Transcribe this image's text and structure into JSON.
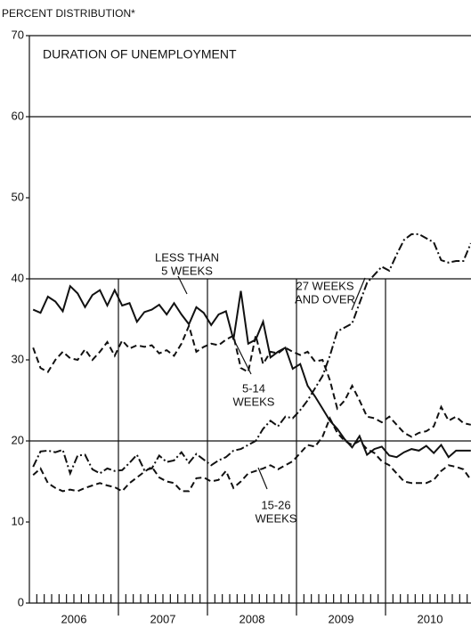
{
  "chart_data": {
    "type": "line",
    "y_label": "PERCENT DISTRIBUTION*",
    "title": "DURATION OF UNEMPLOYMENT",
    "categories": [
      null,
      null,
      null,
      null,
      null,
      null,
      "2006",
      null,
      null,
      null,
      null,
      null,
      null,
      null,
      null,
      null,
      null,
      null,
      "2007",
      null,
      null,
      null,
      null,
      null,
      null,
      null,
      null,
      null,
      null,
      null,
      "2008",
      null,
      null,
      null,
      null,
      null,
      null,
      null,
      null,
      null,
      null,
      null,
      "2009",
      null,
      null,
      null,
      null,
      null,
      null,
      null,
      null,
      null,
      null,
      null,
      "2010",
      null,
      null,
      null,
      null,
      null
    ],
    "ylim": [
      0,
      70
    ],
    "yticks": [
      0,
      10,
      20,
      30,
      40,
      50,
      60,
      70
    ],
    "grid_values": [
      20,
      40,
      60
    ],
    "series": [
      {
        "name": "LESS THAN 5 WEEKS",
        "color": "#111111",
        "style": "solid",
        "values": [
          36.2,
          35.8,
          37.8,
          37.2,
          36.0,
          39.1,
          38.2,
          36.5,
          38.0,
          38.6,
          36.7,
          38.6,
          36.7,
          37.0,
          34.7,
          35.9,
          36.2,
          36.8,
          35.6,
          37.0,
          35.6,
          34.4,
          36.5,
          35.8,
          34.3,
          35.6,
          36.0,
          32.5,
          38.5,
          32.0,
          32.5,
          34.7,
          30.3,
          31.0,
          31.5,
          28.9,
          29.5,
          26.8,
          25.5,
          24.0,
          22.5,
          21.5,
          20.2,
          19.2,
          20.6,
          18.3,
          19.0,
          19.3,
          18.2,
          18.0,
          18.6,
          19.0,
          18.8,
          19.4,
          18.5,
          19.5,
          18.0,
          18.8,
          18.8,
          18.8
        ]
      },
      {
        "name": "5-14 WEEKS",
        "color": "#111111",
        "style": "dashed",
        "values": [
          31.5,
          29.0,
          28.5,
          30.0,
          31.0,
          30.2,
          30.0,
          31.3,
          30.0,
          31.0,
          32.2,
          30.5,
          32.4,
          31.4,
          31.8,
          31.6,
          31.8,
          30.8,
          31.2,
          30.5,
          32.0,
          34.2,
          31.0,
          31.6,
          32.0,
          31.8,
          32.5,
          33.0,
          29.0,
          28.5,
          33.0,
          29.5,
          31.0,
          30.8,
          31.5,
          31.0,
          30.6,
          31.0,
          29.8,
          30.0,
          27.5,
          24.0,
          25.0,
          26.8,
          25.0,
          23.0,
          22.8,
          22.3,
          23.0,
          22.0,
          21.0,
          20.5,
          21.0,
          21.2,
          21.8,
          24.2,
          22.5,
          23.0,
          22.2,
          22.0
        ]
      },
      {
        "name": "15-26 WEEKS",
        "color": "#111111",
        "style": "dashed",
        "values": [
          15.8,
          16.6,
          14.8,
          14.2,
          13.8,
          14.0,
          13.8,
          14.2,
          14.5,
          14.8,
          14.5,
          14.3,
          13.8,
          14.8,
          15.5,
          16.2,
          16.8,
          15.5,
          15.0,
          14.8,
          13.8,
          13.8,
          15.4,
          15.5,
          15.0,
          15.2,
          16.3,
          14.2,
          15.0,
          16.0,
          16.3,
          16.6,
          17.0,
          16.5,
          17.0,
          17.5,
          18.5,
          19.5,
          19.3,
          20.5,
          22.8,
          21.0,
          20.0,
          19.5,
          20.0,
          19.0,
          18.5,
          17.5,
          17.0,
          16.0,
          15.0,
          14.8,
          14.8,
          14.8,
          15.2,
          16.3,
          17.0,
          16.8,
          16.5,
          15.2
        ]
      },
      {
        "name": "27 WEEKS AND OVER",
        "color": "#111111",
        "style": "dashdot",
        "values": [
          16.8,
          18.7,
          18.8,
          18.6,
          18.9,
          16.0,
          18.2,
          18.3,
          16.5,
          16.0,
          16.6,
          16.3,
          16.4,
          17.3,
          18.3,
          16.4,
          16.6,
          18.2,
          17.4,
          17.6,
          18.6,
          17.3,
          18.4,
          17.7,
          17.0,
          17.6,
          18.0,
          18.8,
          19.0,
          19.5,
          20.0,
          21.5,
          22.5,
          21.8,
          23.0,
          22.8,
          23.8,
          25.0,
          26.5,
          28.0,
          30.5,
          33.5,
          34.0,
          34.5,
          37.0,
          39.5,
          40.5,
          41.5,
          41.0,
          43.0,
          44.8,
          45.5,
          45.5,
          45.0,
          44.5,
          42.3,
          42.0,
          42.2,
          42.2,
          44.4
        ]
      }
    ],
    "annotations": [
      {
        "series": 0,
        "lines": [
          "LESS THAN",
          "5 WEEKS"
        ]
      },
      {
        "series": 1,
        "lines": [
          "5-14",
          "WEEKS"
        ]
      },
      {
        "series": 2,
        "lines": [
          "15-26",
          "WEEKS"
        ]
      },
      {
        "series": 3,
        "lines": [
          "27 WEEKS",
          "AND OVER"
        ]
      }
    ]
  }
}
